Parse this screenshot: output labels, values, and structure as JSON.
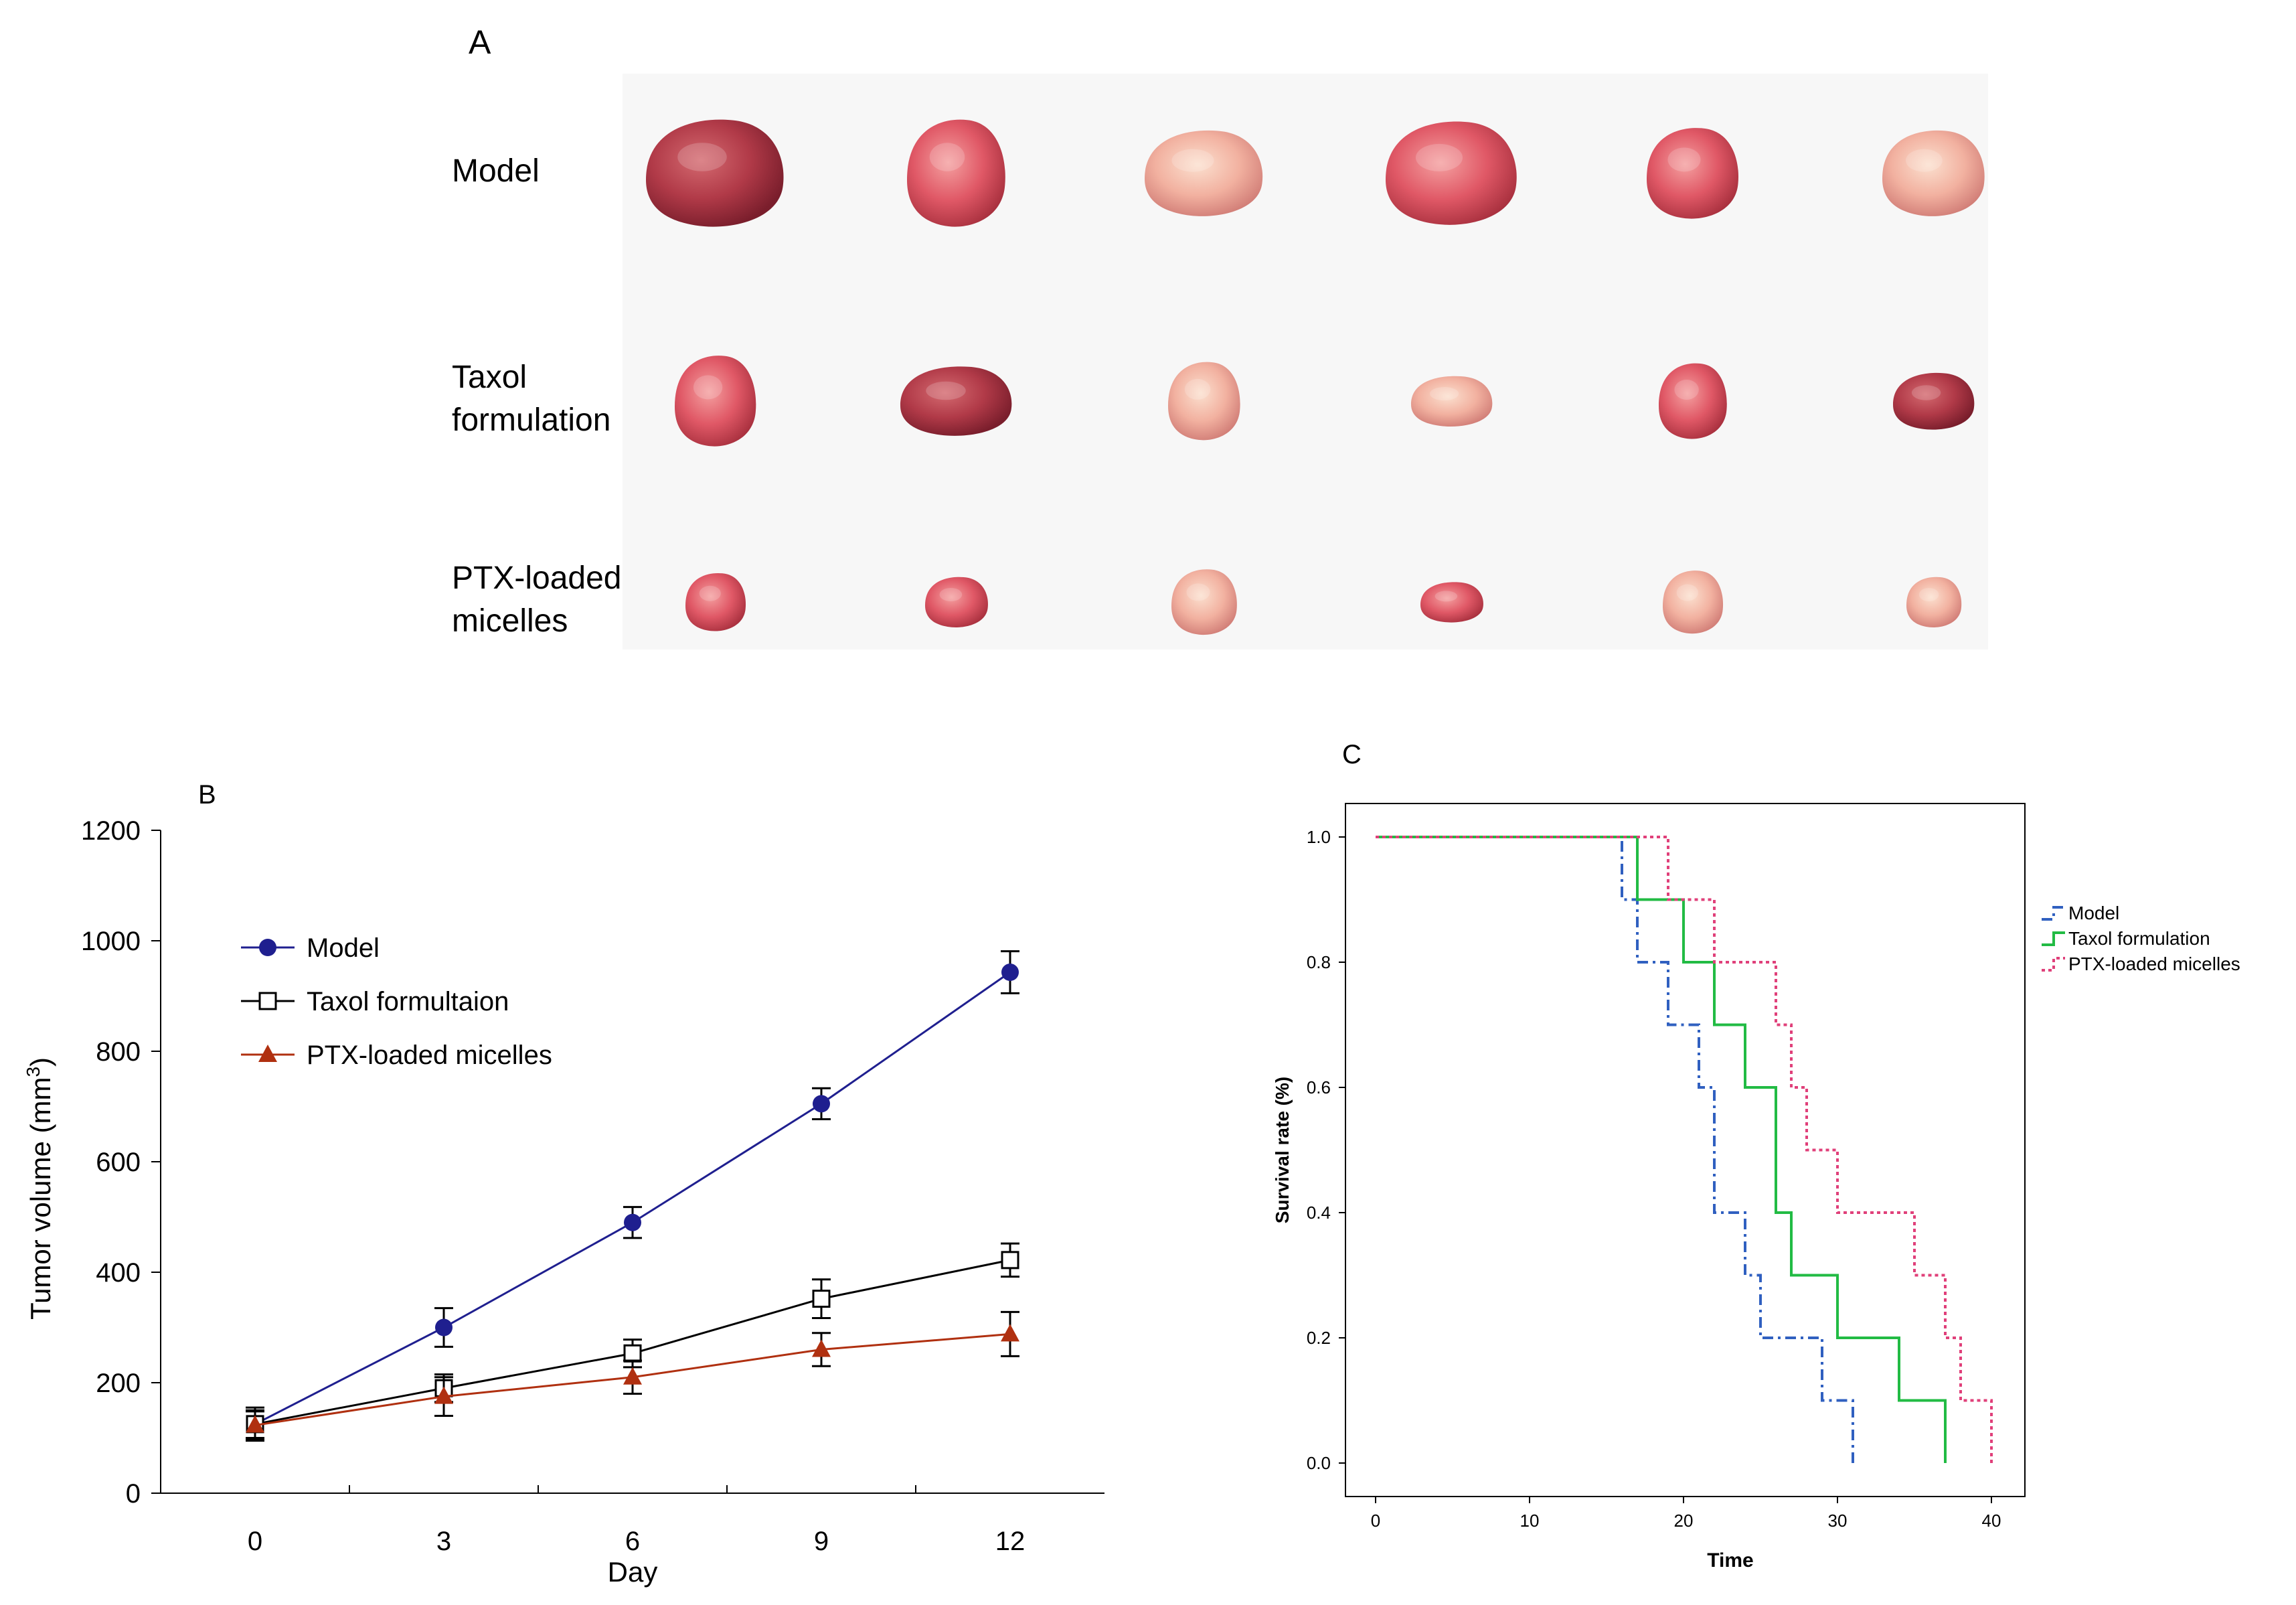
{
  "panel_a": {
    "letter": "A",
    "rows": [
      {
        "label_lines": [
          "Model"
        ],
        "tumor_count": 6
      },
      {
        "label_lines": [
          "Taxol",
          "formulation"
        ],
        "tumor_count": 6
      },
      {
        "label_lines": [
          "PTX-loaded",
          "micelles"
        ],
        "tumor_count": 6
      }
    ]
  },
  "chart_data": [
    {
      "panel": "B",
      "type": "line",
      "xlabel": "Day",
      "ylabel": "Tumor volume (mm",
      "ylabel_sup": "3",
      "ylabel_close": ")",
      "x": [
        0,
        3,
        6,
        9,
        12
      ],
      "x_ticks": [
        "0",
        "3",
        "6",
        "9",
        "12"
      ],
      "ylim": [
        0,
        1200
      ],
      "y_ticks": [
        "0",
        "200",
        "400",
        "600",
        "800",
        "1000",
        "1200"
      ],
      "series": [
        {
          "name": "Model",
          "color": "#1f1f8f",
          "marker": "circle",
          "values": [
            125,
            300,
            490,
            705,
            943
          ],
          "errors": [
            30,
            35,
            28,
            28,
            38
          ]
        },
        {
          "name": "Taxol formultaion",
          "color": "#000000",
          "marker": "open-square",
          "values": [
            125,
            190,
            253,
            352,
            422
          ],
          "errors": [
            25,
            25,
            25,
            35,
            30
          ]
        },
        {
          "name": "PTX-loaded micelles",
          "color": "#b03010",
          "marker": "triangle",
          "values": [
            123,
            175,
            210,
            260,
            288
          ],
          "errors": [
            25,
            35,
            30,
            30,
            40
          ]
        }
      ]
    },
    {
      "panel": "C",
      "type": "line",
      "subtype": "step",
      "xlabel": "Time",
      "ylabel": "Survival rate (%)",
      "xlim": [
        0,
        40
      ],
      "x_ticks": [
        "0",
        "10",
        "20",
        "30",
        "40"
      ],
      "ylim": [
        0,
        1.0
      ],
      "y_ticks": [
        "0.0",
        "0.2",
        "0.4",
        "0.6",
        "0.8",
        "1.0"
      ],
      "series": [
        {
          "name": "Model",
          "color": "#3060c0",
          "dash": "dashdot",
          "times": [
            0,
            16,
            17,
            19,
            21,
            22,
            24,
            25,
            29,
            31
          ],
          "survival": [
            1.0,
            0.9,
            0.8,
            0.7,
            0.6,
            0.4,
            0.3,
            0.2,
            0.1,
            0.0
          ]
        },
        {
          "name": "Taxol formulation",
          "color": "#22bb44",
          "dash": "solid",
          "times": [
            0,
            17,
            20,
            22,
            24,
            26,
            27,
            30,
            34,
            37
          ],
          "survival": [
            1.0,
            0.9,
            0.8,
            0.7,
            0.6,
            0.4,
            0.3,
            0.2,
            0.1,
            0.0
          ]
        },
        {
          "name": "PTX-loaded micelles",
          "color": "#e0407a",
          "dash": "dotted",
          "times": [
            0,
            19,
            22,
            26,
            27,
            28,
            30,
            35,
            37,
            38,
            40
          ],
          "survival": [
            1.0,
            0.9,
            0.8,
            0.7,
            0.6,
            0.5,
            0.4,
            0.3,
            0.2,
            0.1,
            0.0
          ]
        }
      ]
    }
  ]
}
